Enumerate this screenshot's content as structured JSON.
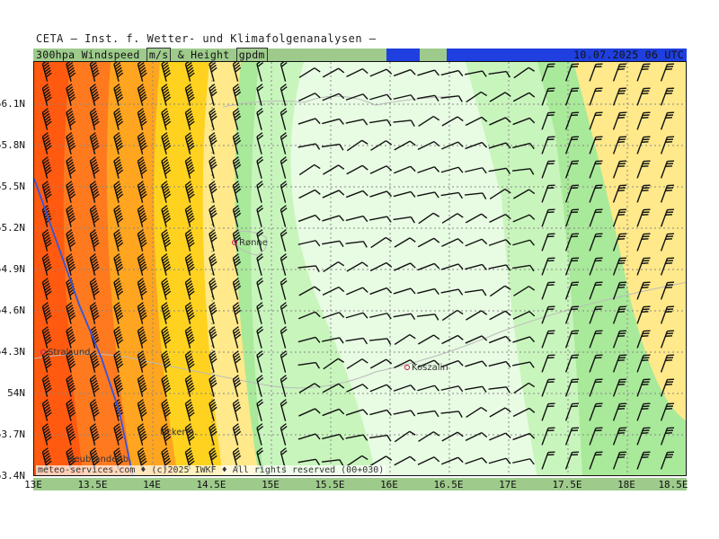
{
  "header": {
    "title": "CETA — Inst. f. Wetter- und Klimafolgenanalysen —"
  },
  "topbar": {
    "label_main": "300hpa Windspeed",
    "label_unit1": "m/s",
    "label_and": "& Height",
    "label_unit2": "gpdm",
    "datetime": "10.07.2025 06 UTC",
    "colors": {
      "green": "#9ecb8c",
      "blue": "#1f3fe0"
    }
  },
  "map": {
    "lat_labels": [
      "56.1N",
      "55.8N",
      "55.5N",
      "55.2N",
      "54.9N",
      "54.6N",
      "54.3N",
      "54N",
      "53.7N",
      "53.4N"
    ],
    "lon_labels": [
      "13E",
      "13.5E",
      "14E",
      "14.5E",
      "15E",
      "15.5E",
      "16E",
      "16.5E",
      "17E",
      "17.5E",
      "18E",
      "18.5E"
    ],
    "cities": [
      {
        "name": "Rønne",
        "icon": "city-marker-icon"
      },
      {
        "name": "Koszalin",
        "icon": "city-marker-icon"
      },
      {
        "name": "Stralsund",
        "icon": "city-marker-icon"
      },
      {
        "name": "Uckerm.",
        "icon": "city-marker-icon"
      },
      {
        "name": "Neubrandenb.",
        "icon": "city-marker-icon"
      }
    ],
    "copyright": "meteo-services.com ♦ (c)2025 IWKF ♦ All rights reserved (00+030)",
    "speed_colors": {
      "very_light_green": "#e8fbe3",
      "light_green": "#c8f5bc",
      "green": "#a9e99a",
      "yellow": "#ffe98a",
      "gold": "#ffd21f",
      "orange": "#ffa51f",
      "dark_orange": "#ff7a1f",
      "red_orange": "#ff5a10"
    }
  }
}
